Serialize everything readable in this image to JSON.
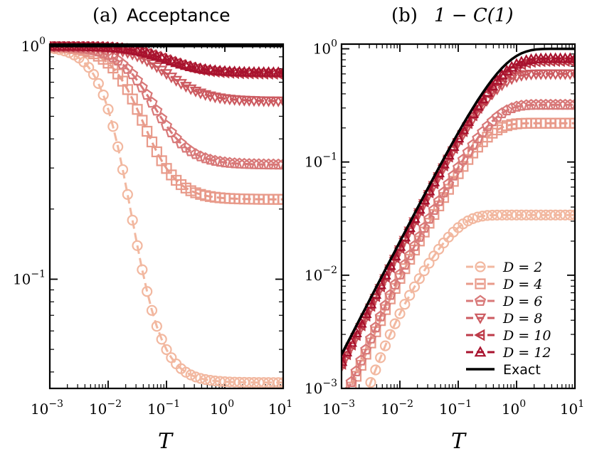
{
  "chart_data": [
    {
      "panel": "a",
      "type": "line",
      "title_prefix": "(a)",
      "title": "Acceptance",
      "xlabel": "T",
      "ylabel": "",
      "xscale": "log",
      "yscale": "log",
      "xlim": [
        0.001,
        10
      ],
      "ylim": [
        0.034,
        1.02
      ],
      "xticks": [
        {
          "base": "10",
          "exp": "−3",
          "value": 0.001
        },
        {
          "base": "10",
          "exp": "−2",
          "value": 0.01
        },
        {
          "base": "10",
          "exp": "−1",
          "value": 0.1
        },
        {
          "base": "10",
          "exp": "0",
          "value": 1
        },
        {
          "base": "10",
          "exp": "1",
          "value": 10
        }
      ],
      "yticks": [
        {
          "base": "10",
          "exp": "−1",
          "value": 0.1
        },
        {
          "base": "10",
          "exp": "0",
          "value": 1
        }
      ],
      "series": [
        {
          "name": "D = 2",
          "color": "#f2b8a0",
          "marker": "circle",
          "dashed": true,
          "plateau": 0.036,
          "tc": 0.025,
          "slope": 1.6
        },
        {
          "name": "D = 4",
          "color": "#e89a8a",
          "marker": "square",
          "dashed": true,
          "plateau": 0.22,
          "tc": 0.04,
          "slope": 1.5
        },
        {
          "name": "D = 6",
          "color": "#d87878",
          "marker": "pentagon",
          "dashed": true,
          "plateau": 0.31,
          "tc": 0.06,
          "slope": 1.4
        },
        {
          "name": "D = 8",
          "color": "#cc5a60",
          "marker": "triangle-down",
          "dashed": true,
          "plateau": 0.58,
          "tc": 0.1,
          "slope": 1.3
        },
        {
          "name": "D = 10",
          "color": "#bd3a48",
          "marker": "triangle-left",
          "dashed": true,
          "plateau": 0.76,
          "tc": 0.1,
          "slope": 1.3
        },
        {
          "name": "D = 12",
          "color": "#a8122e",
          "marker": "triangle-up",
          "dashed": true,
          "plateau": 0.77,
          "tc": 0.1,
          "slope": 1.3
        },
        {
          "name": "Exact",
          "color": "#000000",
          "marker": "none",
          "dashed": false,
          "plateau": 1.0,
          "tc": 1,
          "slope": 1
        }
      ]
    },
    {
      "panel": "b",
      "type": "line",
      "title_prefix": "(b)",
      "title": "1 − C(1)",
      "xlabel": "T",
      "ylabel": "",
      "xscale": "log",
      "yscale": "log",
      "xlim": [
        0.001,
        10
      ],
      "ylim": [
        0.001,
        1.1
      ],
      "xticks": [
        {
          "base": "10",
          "exp": "−3",
          "value": 0.001
        },
        {
          "base": "10",
          "exp": "−2",
          "value": 0.01
        },
        {
          "base": "10",
          "exp": "−1",
          "value": 0.1
        },
        {
          "base": "10",
          "exp": "0",
          "value": 1
        },
        {
          "base": "10",
          "exp": "1",
          "value": 10
        }
      ],
      "yticks": [
        {
          "base": "10",
          "exp": "−3",
          "value": 0.001
        },
        {
          "base": "10",
          "exp": "−2",
          "value": 0.01
        },
        {
          "base": "10",
          "exp": "−1",
          "value": 0.1
        },
        {
          "base": "10",
          "exp": "0",
          "value": 1
        }
      ],
      "legend_position": "lower-right",
      "series": [
        {
          "name": "D = 2",
          "color": "#f2b8a0",
          "marker": "circle",
          "dashed": true,
          "plateau": 0.034,
          "shift": 0.4
        },
        {
          "name": "D = 4",
          "color": "#e89a8a",
          "marker": "square",
          "dashed": true,
          "plateau": 0.22,
          "shift": 0.62
        },
        {
          "name": "D = 6",
          "color": "#d87878",
          "marker": "pentagon",
          "dashed": true,
          "plateau": 0.32,
          "shift": 0.65
        },
        {
          "name": "D = 8",
          "color": "#cc5a60",
          "marker": "triangle-down",
          "dashed": true,
          "plateau": 0.6,
          "shift": 0.9
        },
        {
          "name": "D = 10",
          "color": "#bd3a48",
          "marker": "triangle-left",
          "dashed": true,
          "plateau": 0.78,
          "shift": 0.92
        },
        {
          "name": "D = 12",
          "color": "#a8122e",
          "marker": "triangle-up",
          "dashed": true,
          "plateau": 0.82,
          "shift": 0.94
        },
        {
          "name": "Exact",
          "color": "#000000",
          "marker": "none",
          "dashed": false,
          "plateau": 1.0,
          "shift": 1.0
        }
      ]
    }
  ]
}
